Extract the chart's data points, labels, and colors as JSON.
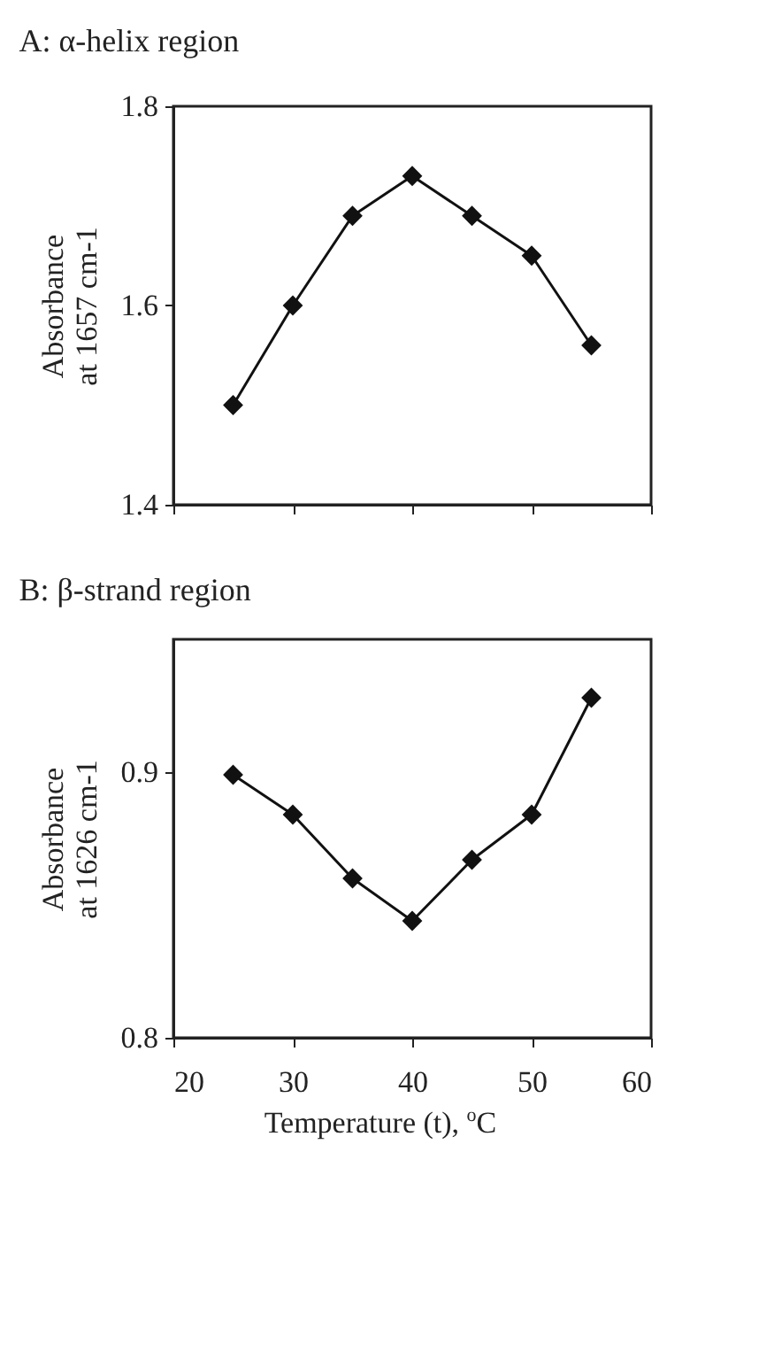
{
  "chart_data": [
    {
      "type": "line",
      "title": "A: α-helix region",
      "ylabel": "Absorbance\nat 1657 cm-1",
      "x": [
        25,
        30,
        35,
        40,
        45,
        50,
        55
      ],
      "series": [
        {
          "color": "#111111",
          "values": [
            1.5,
            1.6,
            1.69,
            1.73,
            1.69,
            1.65,
            1.56
          ]
        }
      ],
      "xlim": [
        20,
        60
      ],
      "xticks": [
        20,
        30,
        40,
        50,
        60
      ],
      "ylim": [
        1.4,
        1.8
      ],
      "yticks": [
        1.4,
        1.6,
        1.8
      ],
      "tick_labels": "y",
      "grid": false,
      "marker": "diamond",
      "line_style": "solid"
    },
    {
      "type": "line",
      "title": "B: β-strand region",
      "xlabel": "Temperature (t), $^{o}$C",
      "ylabel": "Absorbance\nat 1626 cm-1",
      "x": [
        25,
        30,
        35,
        40,
        45,
        50,
        55
      ],
      "series": [
        {
          "color": "#111111",
          "values": [
            0.899,
            0.884,
            0.86,
            0.844,
            0.867,
            0.884,
            0.928
          ]
        }
      ],
      "xlim": [
        20,
        60
      ],
      "xticks": [
        20,
        30,
        40,
        50,
        60
      ],
      "ylim": [
        0.8,
        0.95
      ],
      "yticks": [
        0.8,
        0.9
      ],
      "grid": false,
      "marker": "diamond",
      "line_style": "solid"
    }
  ]
}
